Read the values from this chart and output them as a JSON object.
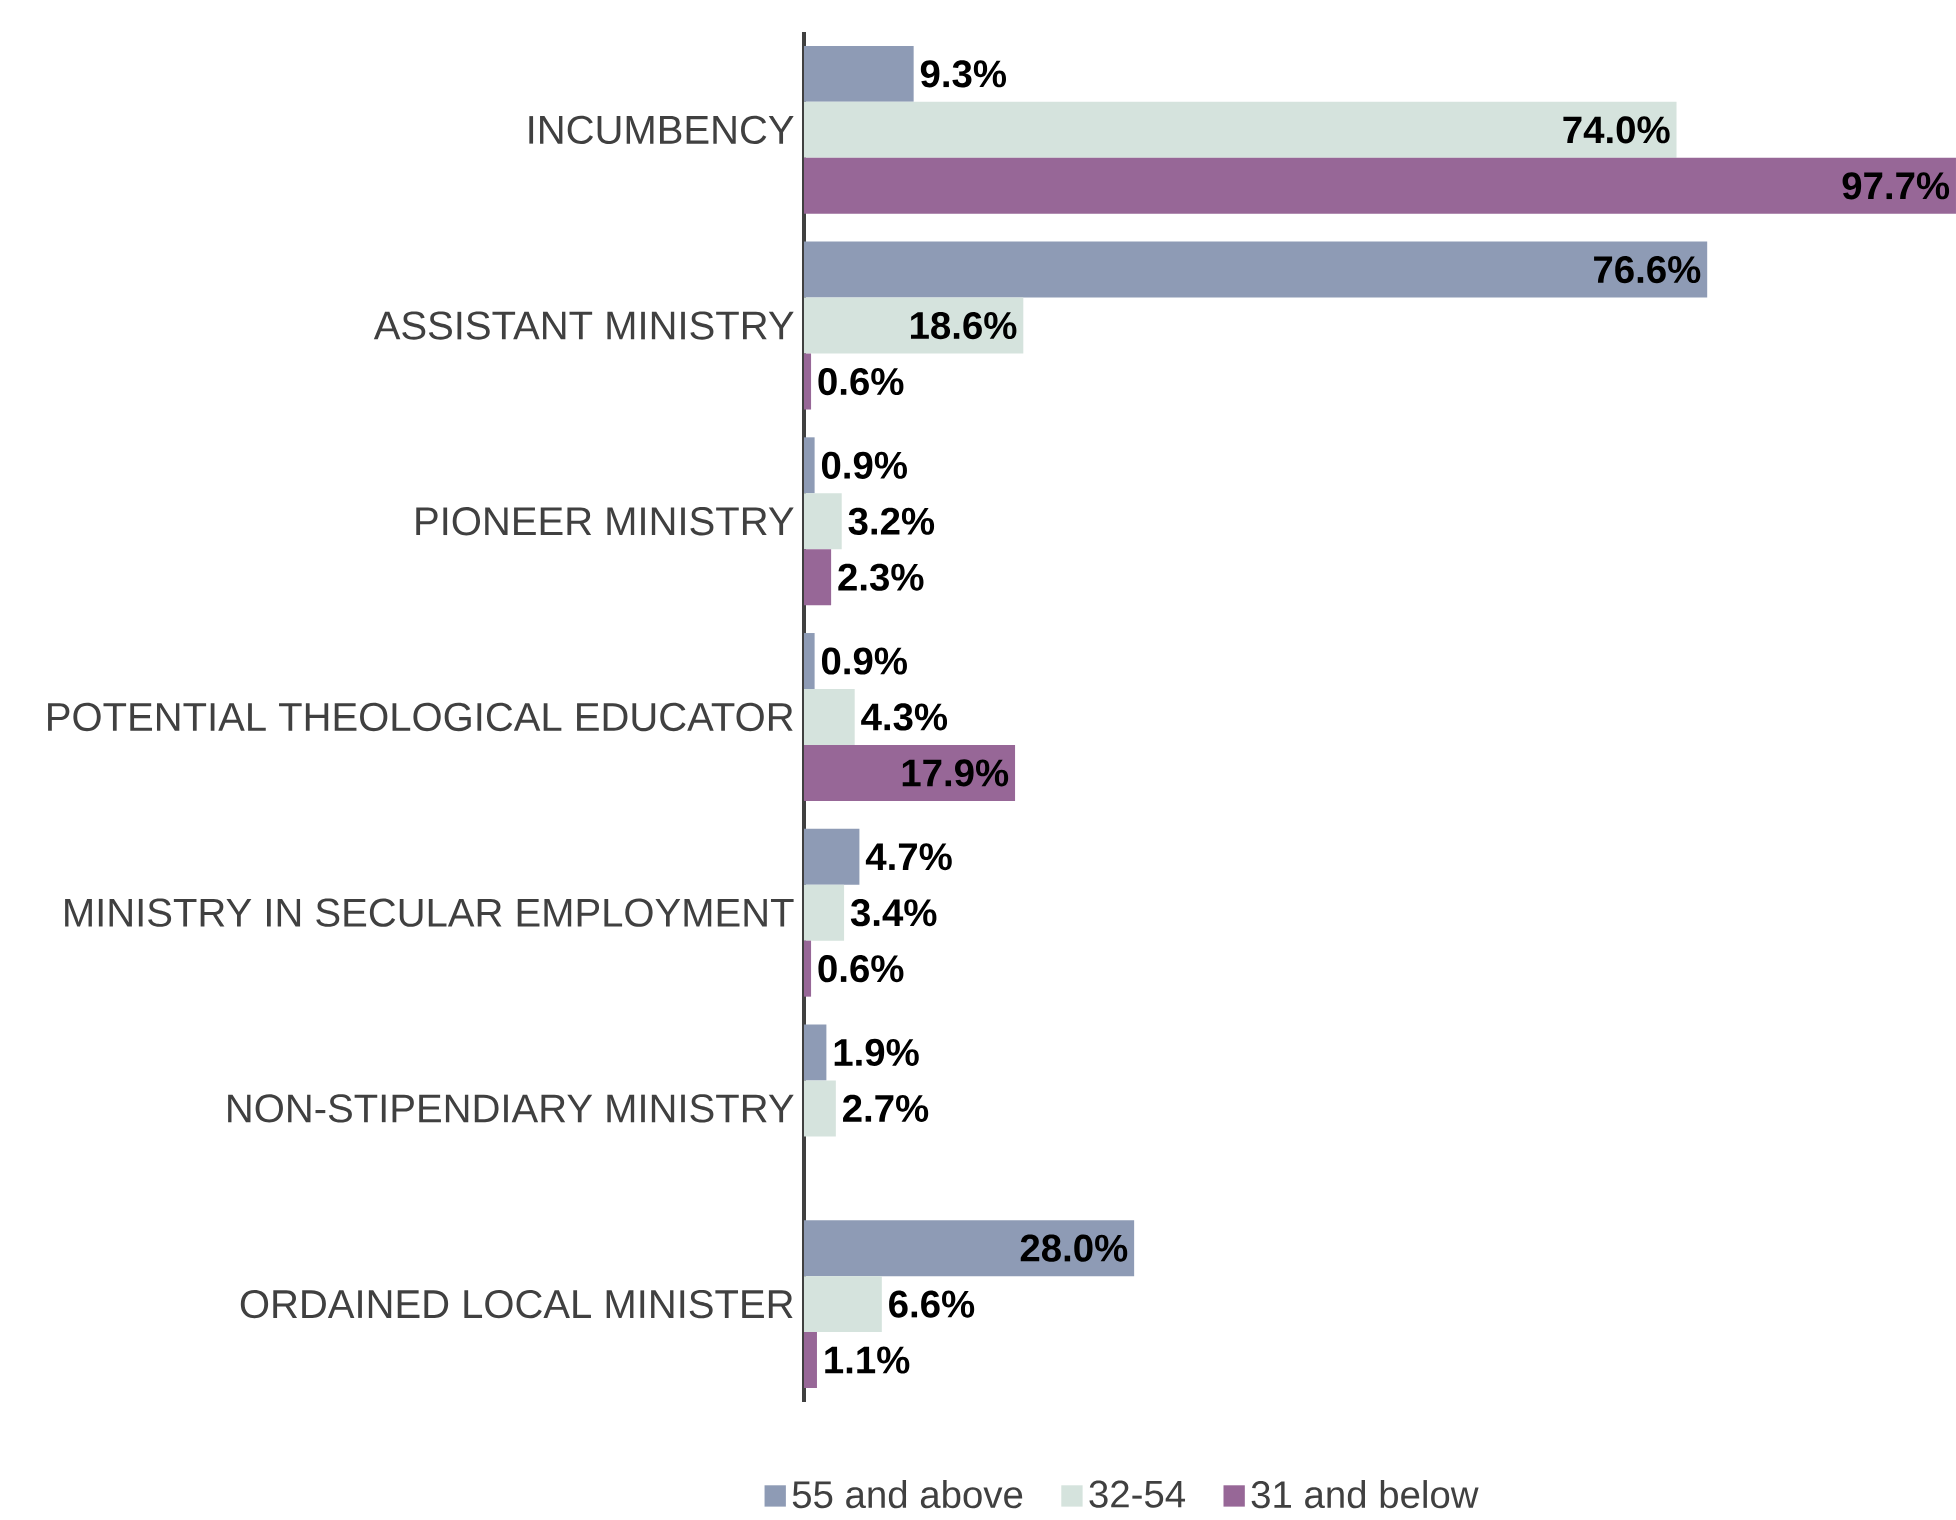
{
  "chart_data": {
    "type": "bar",
    "orientation": "horizontal",
    "tick_labels": "y",
    "legend": "bottom",
    "categories": [
      "INCUMBENCY",
      "ASSISTANT MINISTRY",
      "PIONEER MINISTRY",
      "POTENTIAL THEOLOGICAL EDUCATOR",
      "MINISTRY IN SECULAR EMPLOYMENT",
      "NON-STIPENDIARY MINISTRY",
      "ORDAINED LOCAL MINISTER"
    ],
    "series": [
      {
        "name": "55 and above",
        "color": "#8e9bb5",
        "values": [
          9.3,
          76.6,
          0.9,
          0.9,
          4.7,
          1.9,
          28.0
        ],
        "value_labels": [
          "9.3%",
          "76.6%",
          "0.9%",
          "0.9%",
          "4.7%",
          "1.9%",
          "28.0%"
        ]
      },
      {
        "name": "32-54",
        "color": "#d5e3dd",
        "values": [
          74.0,
          18.6,
          3.2,
          4.3,
          3.4,
          2.7,
          6.6
        ],
        "value_labels": [
          "74.0%",
          "18.6%",
          "3.2%",
          "4.3%",
          "3.4%",
          "2.7%",
          "6.6%"
        ]
      },
      {
        "name": "31 and below",
        "color": "#976797",
        "values": [
          97.7,
          0.6,
          2.3,
          17.9,
          0.6,
          null,
          1.1
        ],
        "value_labels": [
          "97.7%",
          "0.6%",
          "2.3%",
          "17.9%",
          "0.6%",
          null,
          "1.1%"
        ]
      }
    ]
  }
}
